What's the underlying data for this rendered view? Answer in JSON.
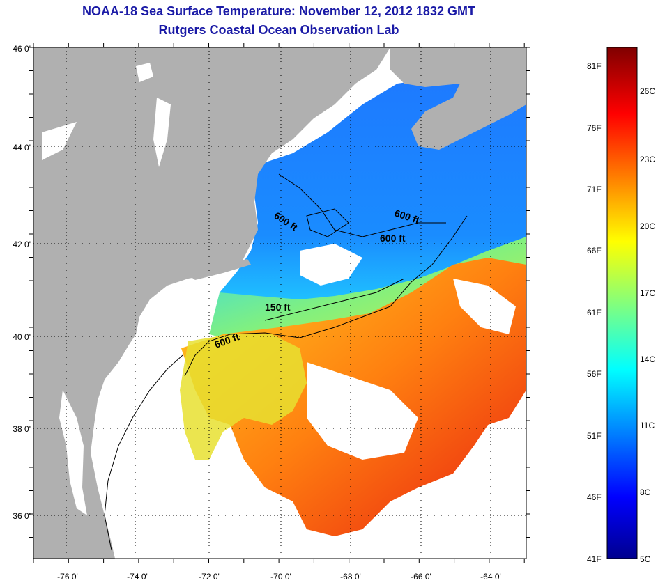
{
  "title": {
    "line1": "NOAA-18 Sea Surface Temperature:  November 12, 2012 1832 GMT",
    "line2": "Rutgers Coastal Ocean Observation Lab"
  },
  "map": {
    "lon_labels": [
      "-76 0'",
      "-74 0'",
      "-72 0'",
      "-70 0'",
      "-68 0'",
      "-66 0'",
      "-64 0'"
    ],
    "lat_labels": [
      "46 0'",
      "44 0'",
      "42 0'",
      "40 0'",
      "38 0'",
      "36 0'"
    ],
    "contour_labels": [
      "600 ft",
      "600 ft",
      "600 ft",
      "150 ft",
      "600 ft"
    ],
    "colors": {
      "land": "#b0b0b0",
      "cloud": "#ffffff",
      "frame": "#000000"
    }
  },
  "colorbar": {
    "fahrenheit_labels": [
      "81F",
      "76F",
      "71F",
      "66F",
      "61F",
      "56F",
      "51F",
      "46F",
      "41F"
    ],
    "celsius_labels": [
      "26C",
      "23C",
      "20C",
      "17C",
      "14C",
      "11C",
      "8C",
      "5C"
    ],
    "colormap": [
      "#00008f",
      "#0000ff",
      "#0080ff",
      "#00ffff",
      "#80ff80",
      "#ffff00",
      "#ff8000",
      "#ff0000",
      "#800000"
    ]
  }
}
